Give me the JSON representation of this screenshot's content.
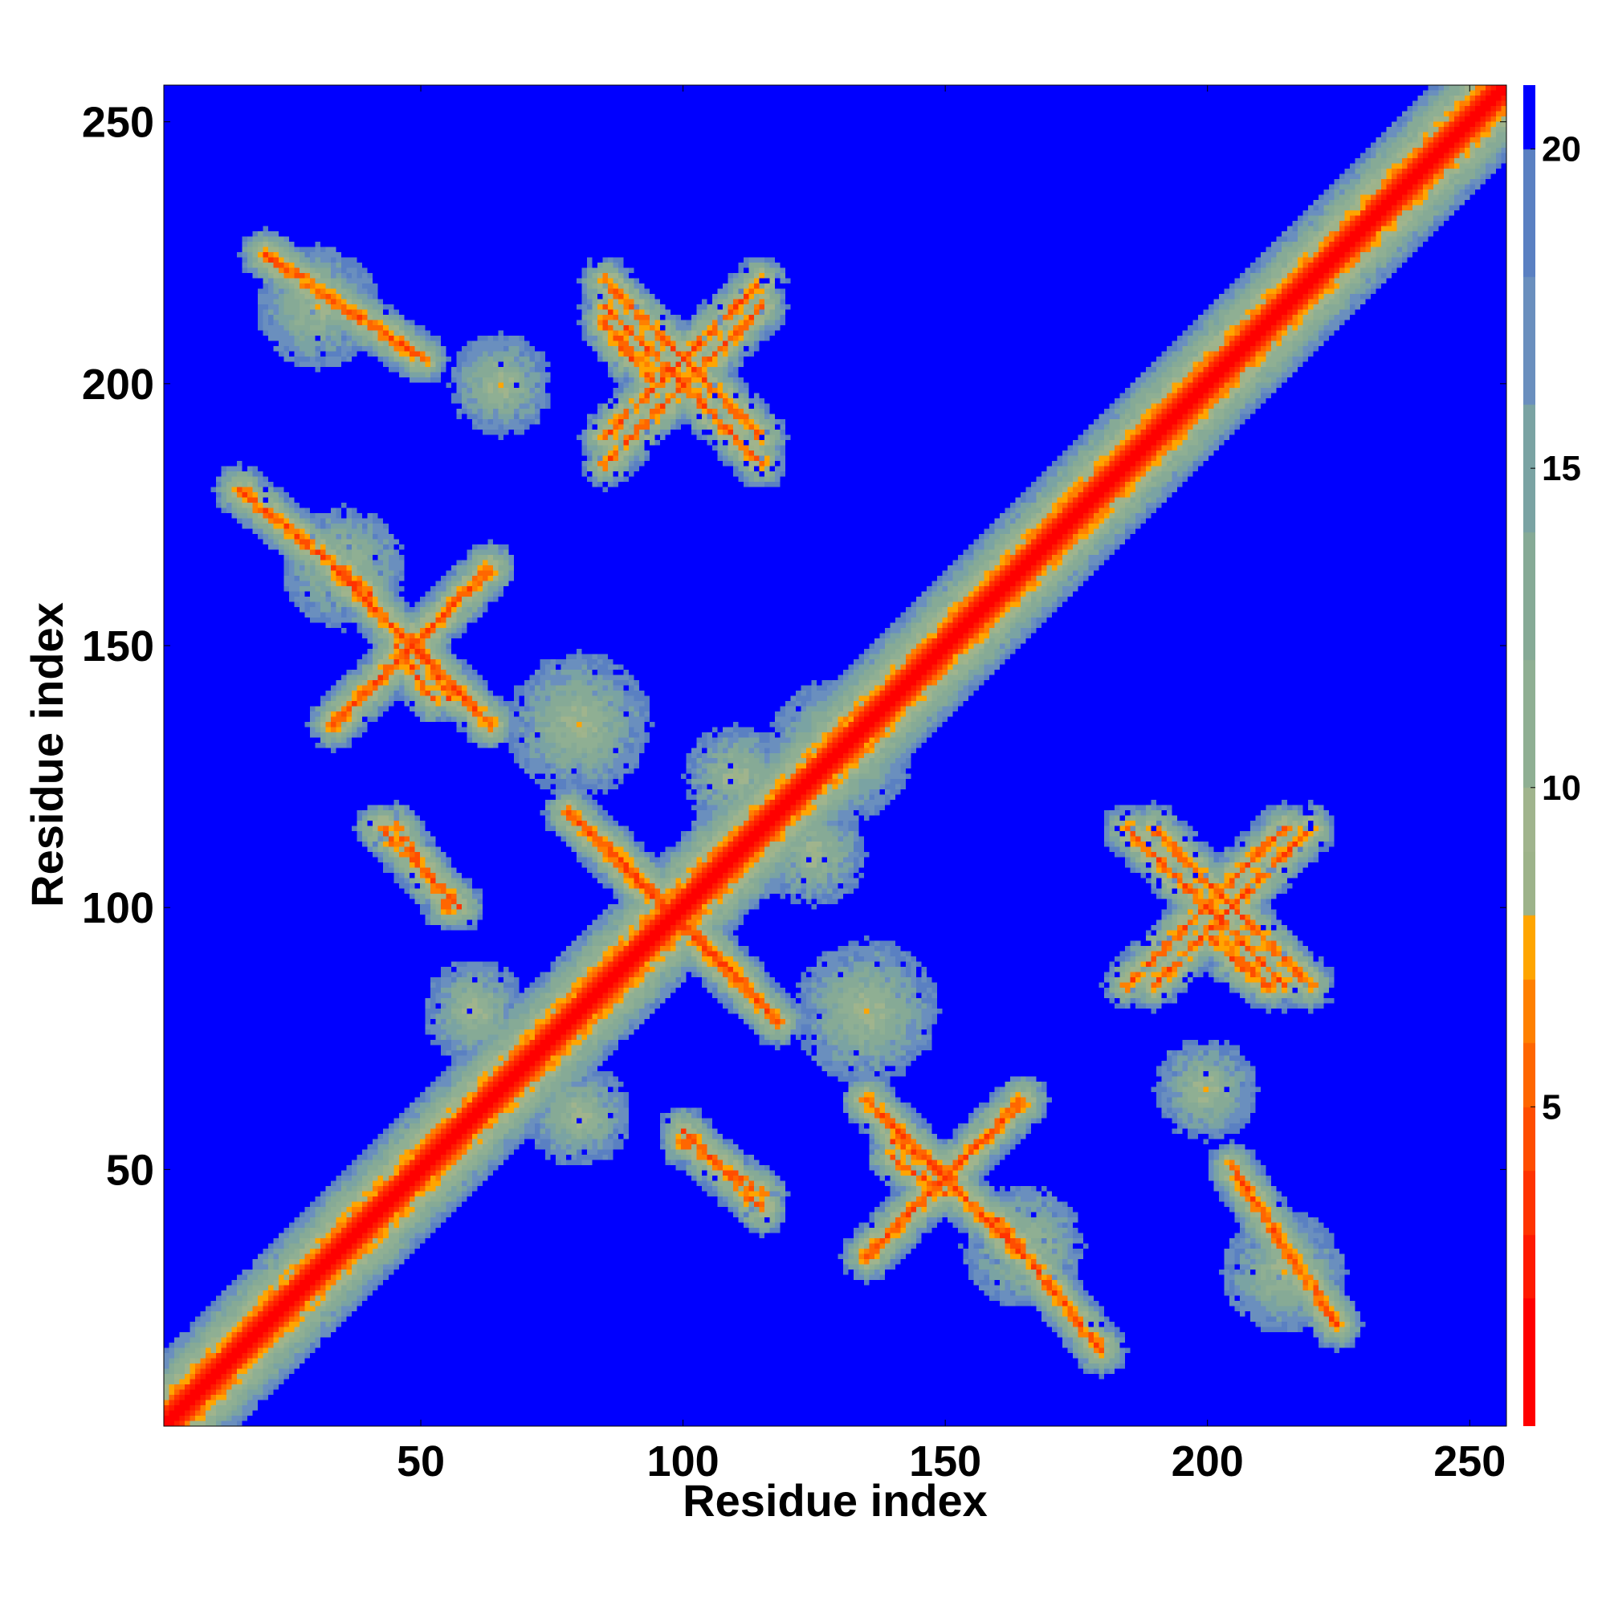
{
  "chart_data": {
    "type": "heatmap",
    "title": "",
    "xlabel": "Residue index",
    "ylabel": "Residue index",
    "xlim": [
      1,
      257
    ],
    "ylim": [
      1,
      257
    ],
    "x_ticks": [
      "50",
      "100",
      "150",
      "200",
      "250"
    ],
    "y_ticks": [
      "50",
      "100",
      "150",
      "200",
      "250"
    ],
    "colorbar": {
      "ticks": [
        "5",
        "10",
        "15",
        "20"
      ],
      "range": [
        0,
        21
      ],
      "levels": [
        {
          "max": 2,
          "color": "#ff0000"
        },
        {
          "max": 3,
          "color": "#ff1a00"
        },
        {
          "max": 4,
          "color": "#ff3300"
        },
        {
          "max": 5,
          "color": "#ff4d00"
        },
        {
          "max": 6,
          "color": "#ff6600"
        },
        {
          "max": 7,
          "color": "#ff8000"
        },
        {
          "max": 8,
          "color": "#ffa500"
        },
        {
          "max": 9,
          "color": "#9db38a"
        },
        {
          "max": 10,
          "color": "#a0b48d"
        },
        {
          "max": 12,
          "color": "#8faf93"
        },
        {
          "max": 14,
          "color": "#86aa96"
        },
        {
          "max": 16,
          "color": "#7aa3a3"
        },
        {
          "max": 18,
          "color": "#6a8fbe"
        },
        {
          "max": 20,
          "color": "#5a80c2"
        },
        {
          "max": 21,
          "color": "#0000ff"
        }
      ]
    },
    "symmetric": true,
    "diagonal": "red",
    "features": [
      {
        "kind": "cross",
        "center": [
          98,
          98
        ],
        "length": 40
      },
      {
        "kind": "cross",
        "center": [
          150,
          48
        ],
        "length": 30
      },
      {
        "kind": "cross",
        "center": [
          205,
          100
        ],
        "length": 30
      },
      {
        "kind": "cross",
        "center": [
          100,
          200
        ],
        "length": 30
      },
      {
        "kind": "cross",
        "center": [
          48,
          150
        ],
        "length": 30
      },
      {
        "kind": "band",
        "from": [
          45,
          115
        ],
        "to": [
          55,
          100
        ]
      },
      {
        "kind": "band",
        "from": [
          48,
          152
        ],
        "to": [
          55,
          140
        ]
      },
      {
        "kind": "band",
        "from": [
          100,
          57
        ],
        "to": [
          115,
          42
        ]
      },
      {
        "kind": "band",
        "from": [
          85,
          112
        ],
        "to": [
          112,
          85
        ]
      },
      {
        "kind": "band",
        "from": [
          140,
          52
        ],
        "to": [
          150,
          45
        ]
      },
      {
        "kind": "band",
        "from": [
          200,
          95
        ],
        "to": [
          212,
          85
        ]
      },
      {
        "kind": "band",
        "from": [
          85,
          212
        ],
        "to": [
          90,
          205
        ]
      },
      {
        "kind": "band",
        "from": [
          15,
          180
        ],
        "to": [
          40,
          160
        ]
      },
      {
        "kind": "band",
        "from": [
          20,
          225
        ],
        "to": [
          50,
          205
        ]
      },
      {
        "kind": "band",
        "from": [
          180,
          15
        ],
        "to": [
          160,
          40
        ]
      },
      {
        "kind": "band",
        "from": [
          225,
          20
        ],
        "to": [
          205,
          50
        ]
      },
      {
        "kind": "blob",
        "center": [
          80,
          135
        ],
        "radius": 14
      },
      {
        "kind": "blob",
        "center": [
          135,
          80
        ],
        "radius": 14
      },
      {
        "kind": "blob",
        "center": [
          130,
          130
        ],
        "radius": 14
      },
      {
        "kind": "blob",
        "center": [
          60,
          80
        ],
        "radius": 10
      },
      {
        "kind": "blob",
        "center": [
          80,
          60
        ],
        "radius": 10
      },
      {
        "kind": "blob",
        "center": [
          165,
          35
        ],
        "radius": 12
      },
      {
        "kind": "blob",
        "center": [
          215,
          30
        ],
        "radius": 12
      },
      {
        "kind": "blob",
        "center": [
          200,
          65
        ],
        "radius": 10
      },
      {
        "kind": "blob",
        "center": [
          35,
          165
        ],
        "radius": 12
      },
      {
        "kind": "blob",
        "center": [
          30,
          215
        ],
        "radius": 12
      },
      {
        "kind": "blob",
        "center": [
          65,
          200
        ],
        "radius": 10
      },
      {
        "kind": "blob",
        "center": [
          125,
          110
        ],
        "radius": 10
      },
      {
        "kind": "blob",
        "center": [
          110,
          125
        ],
        "radius": 10
      }
    ]
  }
}
